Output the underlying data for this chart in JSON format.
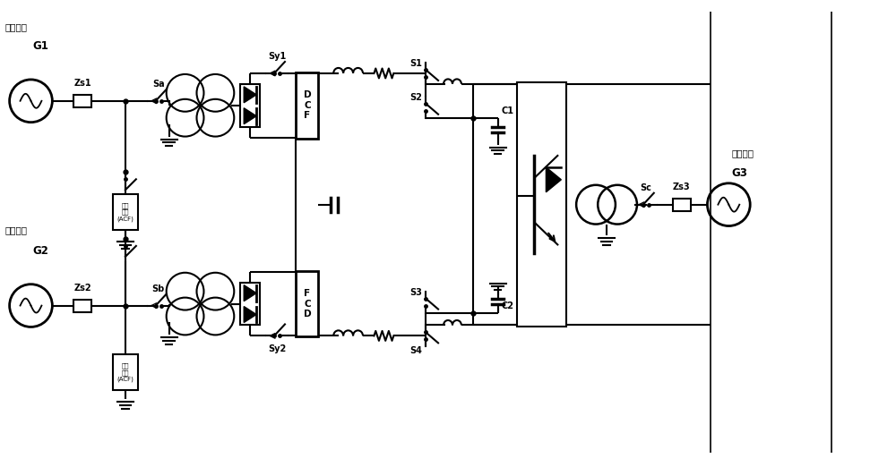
{
  "bg": "#ffffff",
  "lw": 1.5,
  "fw": 10.0,
  "fh": 5.22,
  "dpi": 100,
  "labels": {
    "acg1": "交流电网",
    "G1": "G1",
    "Zs1": "Zs1",
    "Sa": "Sa",
    "Sy1": "Sy1",
    "DCF": "D\nC\nF",
    "flt_t": "滤波\n元件\n(ACF)",
    "acg2": "交流电网",
    "G2": "G2",
    "Zs2": "Zs2",
    "Sb": "Sb",
    "Sy2": "Sy2",
    "FCD": "F\nC\nD",
    "flt_b": "滤波\n元件\n(ACF)",
    "S1": "S1",
    "S2": "S2",
    "S3": "S3",
    "S4": "S4",
    "C1": "C1",
    "C2": "C2",
    "Sc": "Sc",
    "Zs3": "Zs3",
    "acg3": "交流电网",
    "G3": "G3"
  }
}
